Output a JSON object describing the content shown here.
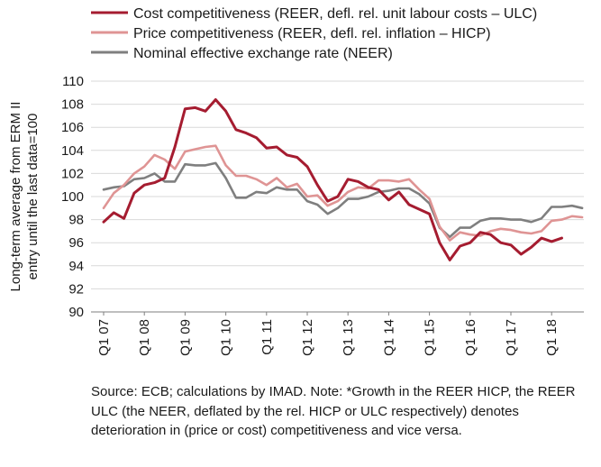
{
  "chart_data": {
    "type": "line",
    "ylabel_line1": "Long-term average from ERM II",
    "ylabel_line2": "entry until the last data=100",
    "ylim": [
      90,
      110
    ],
    "ytick_step": 2,
    "x_period": "quarterly",
    "x_start_year": 2007,
    "x_tick_labels": [
      "Q1 07",
      "Q1 08",
      "Q1 09",
      "Q1 10",
      "Q1 11",
      "Q1 12",
      "Q1 13",
      "Q1 14",
      "Q1 15",
      "Q1 16",
      "Q1 17",
      "Q1 18"
    ],
    "grid": "horizontal",
    "legend_position": "top",
    "series": [
      {
        "name": "Cost competitiveness (REER, defl. rel. unit labour costs – ULC)",
        "color": "#a51c30",
        "values": [
          97.8,
          98.6,
          98.1,
          100.3,
          101.0,
          101.2,
          101.6,
          104.3,
          107.6,
          107.7,
          107.4,
          108.4,
          107.4,
          105.8,
          105.5,
          105.1,
          104.2,
          104.3,
          103.6,
          103.4,
          102.6,
          101.0,
          99.6,
          100.0,
          101.5,
          101.3,
          100.8,
          100.6,
          99.7,
          100.4,
          99.3,
          98.9,
          98.5,
          96.0,
          94.5,
          95.7,
          96.0,
          96.9,
          96.7,
          96.0,
          95.8,
          95.0,
          95.6,
          96.4,
          96.1,
          96.4
        ]
      },
      {
        "name": "Price competitiveness (REER, defl. rel. inflation – HICP)",
        "color": "#df9494",
        "values": [
          99.0,
          100.3,
          101.0,
          102.0,
          102.6,
          103.6,
          103.2,
          102.4,
          103.9,
          104.1,
          104.3,
          104.4,
          102.7,
          101.8,
          101.8,
          101.5,
          101.0,
          101.6,
          100.8,
          101.1,
          100.0,
          100.1,
          99.2,
          99.6,
          100.4,
          100.8,
          100.7,
          101.4,
          101.4,
          101.3,
          101.5,
          100.6,
          99.8,
          97.4,
          96.2,
          96.9,
          96.7,
          96.6,
          97.0,
          97.2,
          97.1,
          96.9,
          96.8,
          97.0,
          97.9,
          98.0,
          98.3,
          98.2
        ]
      },
      {
        "name": "Nominal effective exchange rate (NEER)",
        "color": "#7f7f7f",
        "values": [
          100.6,
          100.8,
          100.9,
          101.5,
          101.6,
          102.0,
          101.3,
          101.3,
          102.8,
          102.7,
          102.7,
          102.9,
          101.6,
          99.9,
          99.9,
          100.4,
          100.3,
          100.8,
          100.6,
          100.6,
          99.6,
          99.3,
          98.5,
          99.0,
          99.8,
          99.8,
          100.0,
          100.4,
          100.5,
          100.7,
          100.7,
          100.2,
          99.4,
          97.3,
          96.5,
          97.3,
          97.3,
          97.9,
          98.1,
          98.1,
          98.0,
          98.0,
          97.8,
          98.1,
          99.1,
          99.1,
          99.2,
          99.0
        ]
      }
    ]
  },
  "note": "Source: ECB; calculations by IMAD. Note: *Growth in the REER HICP, the REER ULC (the NEER, deflated by the rel. HICP or ULC respectively) denotes deterioration in (price or cost) competitiveness and vice versa."
}
